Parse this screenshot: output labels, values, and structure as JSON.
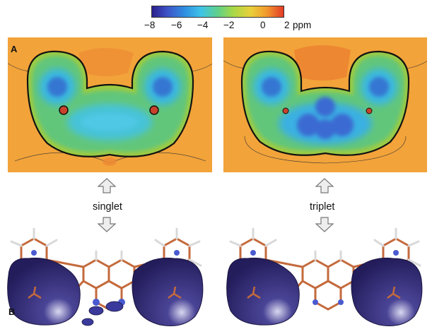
{
  "colorbar": {
    "ticks": [
      "−8",
      "−6",
      "−4",
      "−2",
      "0",
      "2"
    ],
    "unit": "ppm",
    "colors": [
      "#2b1f8c",
      "#3d55c8",
      "#2f8fe0",
      "#3fc3e8",
      "#5fd08a",
      "#a9d846",
      "#e8d03a",
      "#f29a2e",
      "#e23b26"
    ]
  },
  "panel_labels": {
    "top": "A",
    "bottom": "B"
  },
  "states": {
    "left": "singlet",
    "right": "triplet"
  },
  "colors": {
    "background_map": "#f4a636",
    "surface": "#2a2466",
    "bond_carbon": "#c46a3c",
    "hydrogen": "#d9d9d9",
    "nitrogen": "#4a5ad0"
  }
}
